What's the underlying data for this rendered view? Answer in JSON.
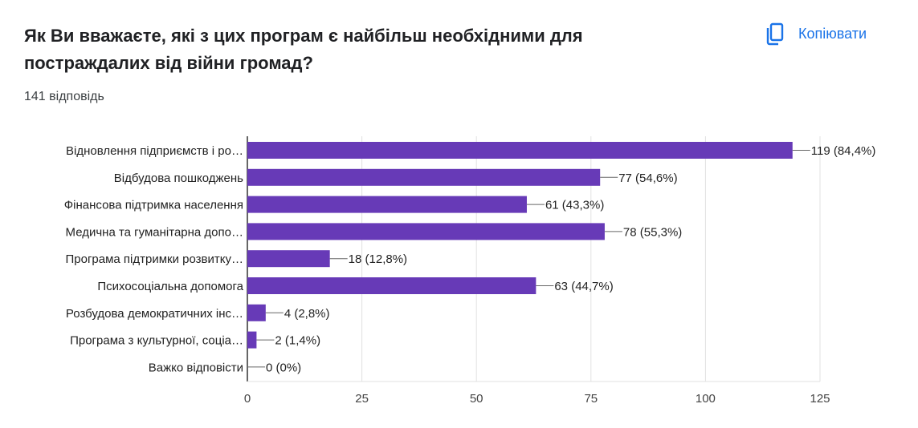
{
  "question": {
    "title": "Як Ви вважаєте, які з цих програм є найбільш необхідними для постраждалих від війни громад?",
    "response_count": "141 відповідь"
  },
  "toolbar": {
    "copy_label": "Копіювати",
    "copy_icon": "copy-icon"
  },
  "colors": {
    "bar": "#673ab7",
    "accent": "#1a73e8",
    "grid": "#e0e0e0",
    "axis": "#333333"
  },
  "chart_data": {
    "type": "bar",
    "orientation": "horizontal",
    "categories": [
      "Відновлення підприємств і ро…",
      "Відбудова пошкоджень",
      "Фінансова підтримка населення",
      "Медична та гуманітарна допо…",
      "Програма підтримки розвитку…",
      "Психосоціальна допомога",
      "Розбудова демократичних інс…",
      "Програма з культурної, соціа…",
      "Важко відповісти"
    ],
    "values": [
      119,
      77,
      61,
      78,
      18,
      63,
      4,
      2,
      0
    ],
    "labels": [
      "119 (84,4%)",
      "77 (54,6%)",
      "61 (43,3%)",
      "78 (55,3%)",
      "18 (12,8%)",
      "63 (44,7%)",
      "4 (2,8%)",
      "2 (1,4%)",
      "0 (0%)"
    ],
    "xlim": [
      0,
      125
    ],
    "xticks": [
      "0",
      "25",
      "50",
      "75",
      "100",
      "125"
    ],
    "grid": true
  }
}
